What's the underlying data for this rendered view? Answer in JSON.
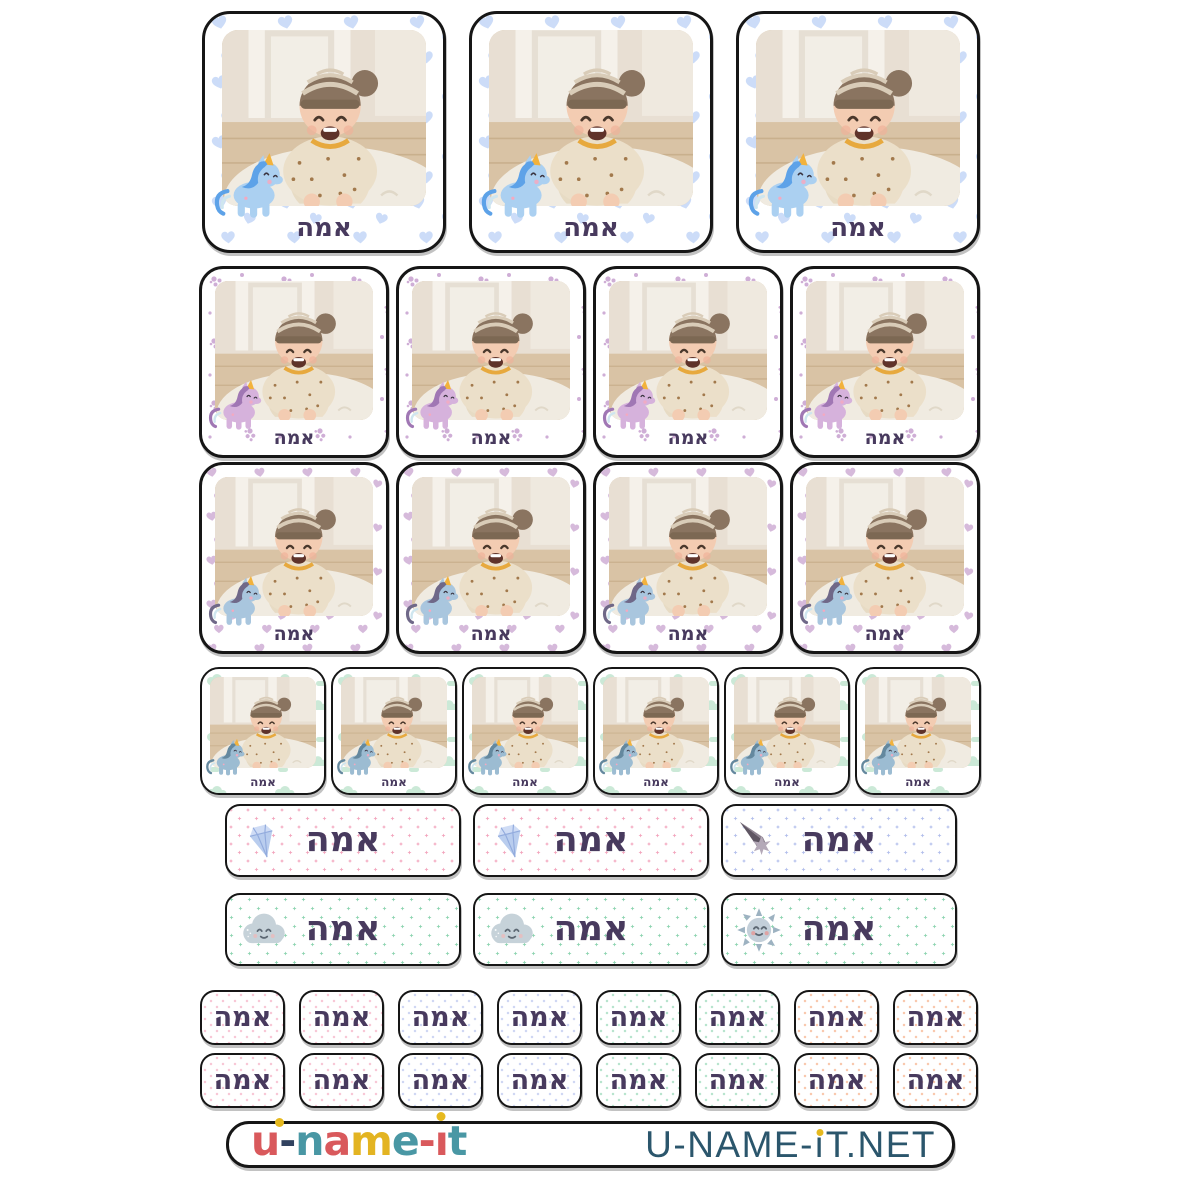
{
  "name_text": "אמה",
  "name_color": "#483a5e",
  "photo_subject": "laughing baby in striped beanie lying on fluffy rug",
  "pattern_colors": {
    "hearts-blue": "#ccdcf8",
    "dotclusters-mauve": "#cfaed6",
    "hearts-mauve": "#d6badb",
    "clouds-mint": "#cbe9d7",
    "dots-pink": "#f3a6be",
    "dots-lavender": "#b3bfec",
    "dots-mint": "#8ed4b1",
    "dots-orange": "#f6a87d"
  },
  "rows": [
    {
      "id": "photo-row-large",
      "kind": "photo",
      "size": "lg",
      "count": 3,
      "pattern": "hearts-blue",
      "unicorn": {
        "body": "#abd0f1",
        "mane": "#5da2e8",
        "horn": "#f2b23c"
      }
    },
    {
      "id": "photo-row-medium-dots",
      "kind": "photo",
      "size": "md",
      "count": 4,
      "pattern": "dotclusters-mauve",
      "unicorn": {
        "body": "#d6b2dc",
        "mane": "#a077b4",
        "horn": "#f2b23c"
      }
    },
    {
      "id": "photo-row-medium-hearts",
      "kind": "photo",
      "size": "md",
      "count": 4,
      "pattern": "hearts-mauve",
      "unicorn": {
        "body": "#a9c6de",
        "mane": "#6f6888",
        "horn": "#f2b23c"
      }
    },
    {
      "id": "photo-row-small",
      "kind": "photo",
      "size": "sm",
      "count": 6,
      "pattern": "clouds-mint",
      "unicorn": {
        "body": "#9cbcd2",
        "mane": "#64889e",
        "horn": "#f2b23c"
      }
    },
    {
      "id": "label-row-pink",
      "kind": "label",
      "size": "lg",
      "items": [
        {
          "icon": "diamond",
          "pattern": "dots-pink-lg"
        },
        {
          "icon": "diamond",
          "pattern": "dots-pink-lg"
        },
        {
          "icon": "comet",
          "pattern": "dots-lavender-lg"
        }
      ]
    },
    {
      "id": "label-row-mint",
      "kind": "label",
      "size": "lg",
      "items": [
        {
          "icon": "cloud",
          "pattern": "dots-mint-lg"
        },
        {
          "icon": "cloud",
          "pattern": "dots-mint-lg"
        },
        {
          "icon": "sun",
          "pattern": "dots-mint-lg"
        }
      ]
    },
    {
      "id": "mini-label-row-1",
      "kind": "label",
      "size": "sm",
      "items": [
        {
          "pattern": "dots-pink-sm"
        },
        {
          "pattern": "dots-pink-sm"
        },
        {
          "pattern": "dots-lavender-sm"
        },
        {
          "pattern": "dots-lavender-sm"
        },
        {
          "pattern": "dots-mint-sm"
        },
        {
          "pattern": "dots-mint-sm"
        },
        {
          "pattern": "dots-orange-sm"
        },
        {
          "pattern": "dots-orange-sm"
        }
      ]
    },
    {
      "id": "mini-label-row-2",
      "kind": "label",
      "size": "sm",
      "items": [
        {
          "pattern": "dots-pink-sm"
        },
        {
          "pattern": "dots-pink-sm"
        },
        {
          "pattern": "dots-lavender-sm"
        },
        {
          "pattern": "dots-lavender-sm"
        },
        {
          "pattern": "dots-mint-sm"
        },
        {
          "pattern": "dots-mint-sm"
        },
        {
          "pattern": "dots-orange-sm"
        },
        {
          "pattern": "dots-orange-sm"
        }
      ]
    }
  ],
  "footer": {
    "logo_text": "u-name-it",
    "dot_color": "#e6b91e",
    "logo_letters": [
      {
        "t": "u",
        "c": "#d9595c",
        "dot": "right"
      },
      {
        "t": "-",
        "c": "#31425f"
      },
      {
        "t": "n",
        "c": "#4997a4"
      },
      {
        "t": "a",
        "c": "#d9595c"
      },
      {
        "t": "m",
        "c": "#e3b422"
      },
      {
        "t": "e",
        "c": "#4997a4"
      },
      {
        "t": "-",
        "c": "#d9595c"
      },
      {
        "t": "ı",
        "c": "#d9595c",
        "dot": "top"
      },
      {
        "t": "t",
        "c": "#4997a4"
      }
    ],
    "website": {
      "text": "U-NAME-iT.NET",
      "pre": "U-NAME-",
      "i_char": "ı",
      "post": "T.NET",
      "color": "#2b566c",
      "i_dot_color": "#e6b91e"
    }
  }
}
